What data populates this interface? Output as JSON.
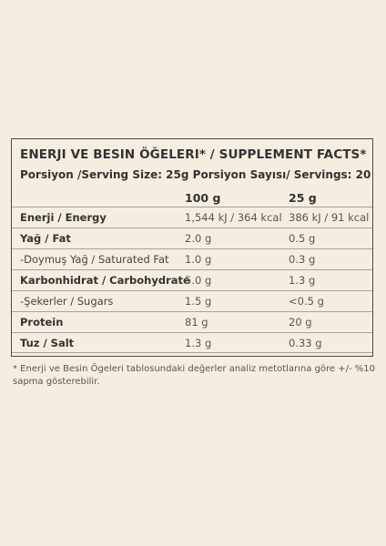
{
  "title": "Enerji ve Besin Öğeleri* / Supplement Facts*",
  "serving_line": "Porsiyon /Serving Size: 25g Porsiyon Sayısı/ Servings: 20",
  "columns": [
    "100 g",
    "25 g"
  ],
  "rows": [
    {
      "label": "Enerji / Energy",
      "bold": true,
      "v100": "1,544 kJ / 364 kcal",
      "v25": "386 kJ / 91 kcal"
    },
    {
      "label": "Yağ / Fat",
      "bold": true,
      "v100": "2.0 g",
      "v25": "0.5 g"
    },
    {
      "label": "-Doymuş Yağ / Saturated Fat",
      "bold": false,
      "v100": "1.0 g",
      "v25": "0.3 g"
    },
    {
      "label": "Karbonhidrat / Carbohydrate",
      "bold": true,
      "v100": "5.0 g",
      "v25": "1.3 g"
    },
    {
      "label": "-Şekerler / Sugars",
      "bold": false,
      "v100": "1.5 g",
      "v25": "<0.5 g"
    },
    {
      "label": "Protein",
      "bold": true,
      "v100": "81 g",
      "v25": "20 g"
    },
    {
      "label": "Tuz / Salt",
      "bold": true,
      "v100": "1.3 g",
      "v25": "0.33 g"
    }
  ],
  "footnote": "* Enerji ve Besin Ögeleri tablosundaki değerler analiz metotlarına göre +/- %10 sapma gösterebilir.",
  "colors": {
    "background": "#f5eee0",
    "border": "#4a4a4a",
    "text": "#333333"
  }
}
